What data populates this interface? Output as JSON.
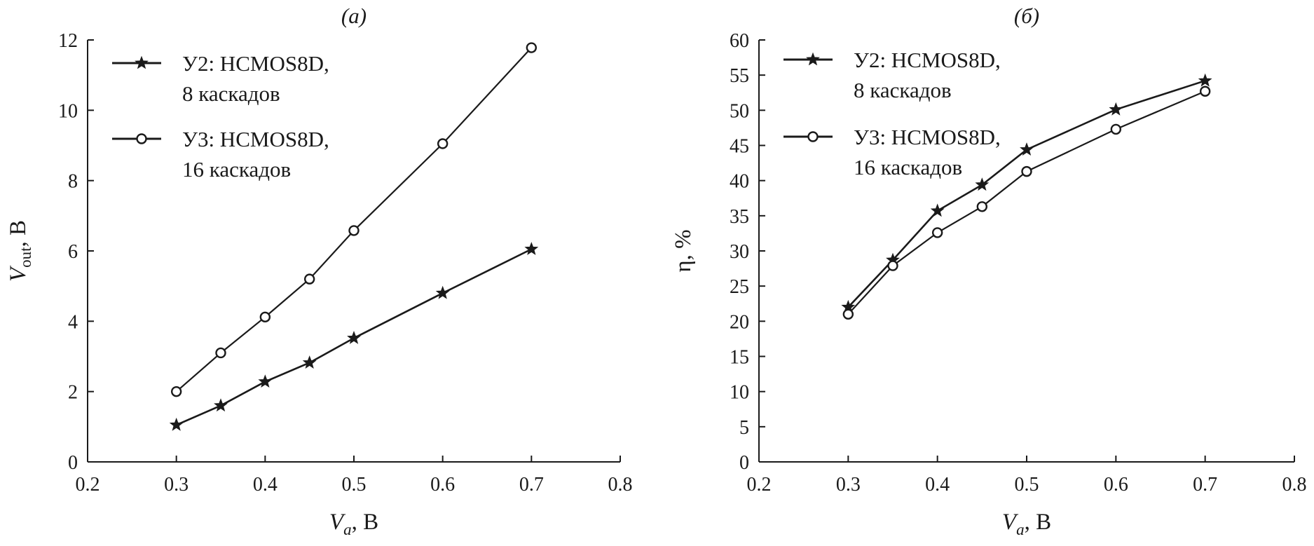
{
  "chart_data": [
    {
      "type": "line",
      "panel_label": "(a)",
      "xlabel": {
        "main": "V",
        "sub": "a",
        "unit": ", В"
      },
      "ylabel": {
        "main": "V",
        "sub": "out",
        "unit": ", В"
      },
      "xlim": [
        0.2,
        0.8
      ],
      "ylim": [
        0,
        12
      ],
      "xticks": [
        "0.2",
        "0.3",
        "0.4",
        "0.5",
        "0.6",
        "0.7",
        "0.8"
      ],
      "yticks": [
        "0",
        "2",
        "4",
        "6",
        "8",
        "10",
        "12"
      ],
      "grid": false,
      "legend_position": "top-left",
      "series": [
        {
          "name": "У2: HCMOS8D, 8 каскадов",
          "name_line1": "У2: HCMOS8D,",
          "name_line2": "8 каскадов",
          "marker": "star",
          "x": [
            0.3,
            0.35,
            0.4,
            0.45,
            0.5,
            0.6,
            0.7
          ],
          "y": [
            1.05,
            1.6,
            2.28,
            2.82,
            3.52,
            4.8,
            6.05
          ]
        },
        {
          "name": "У3: HCMOS8D, 16 каскадов",
          "name_line1": "У3: HCMOS8D,",
          "name_line2": "16 каскадов",
          "marker": "circle",
          "x": [
            0.3,
            0.35,
            0.4,
            0.45,
            0.5,
            0.6,
            0.7
          ],
          "y": [
            2.0,
            3.1,
            4.12,
            5.2,
            6.58,
            9.05,
            11.78
          ]
        }
      ]
    },
    {
      "type": "line",
      "panel_label": "(б)",
      "xlabel": {
        "main": "V",
        "sub": "a",
        "unit": ", В"
      },
      "ylabel": {
        "main": "η, %",
        "sub": "",
        "unit": ""
      },
      "xlim": [
        0.2,
        0.8
      ],
      "ylim": [
        0,
        60
      ],
      "xticks": [
        "0.2",
        "0.3",
        "0.4",
        "0.5",
        "0.6",
        "0.7",
        "0.8"
      ],
      "yticks": [
        "0",
        "5",
        "10",
        "15",
        "20",
        "25",
        "30",
        "35",
        "40",
        "45",
        "50",
        "55",
        "60"
      ],
      "grid": false,
      "legend_position": "top-left",
      "series": [
        {
          "name": "У2: HCMOS8D, 8 каскадов",
          "name_line1": "У2: HCMOS8D,",
          "name_line2": "8 каскадов",
          "marker": "star",
          "x": [
            0.3,
            0.35,
            0.4,
            0.45,
            0.5,
            0.6,
            0.7
          ],
          "y": [
            22.0,
            28.7,
            35.7,
            39.4,
            44.4,
            50.1,
            54.2
          ]
        },
        {
          "name": "У3: HCMOS8D, 16 каскадов",
          "name_line1": "У3: HCMOS8D,",
          "name_line2": "16 каскадов",
          "marker": "circle",
          "x": [
            0.3,
            0.35,
            0.4,
            0.45,
            0.5,
            0.6,
            0.7
          ],
          "y": [
            21.0,
            27.9,
            32.6,
            36.3,
            41.3,
            47.3,
            52.7
          ]
        }
      ]
    }
  ]
}
